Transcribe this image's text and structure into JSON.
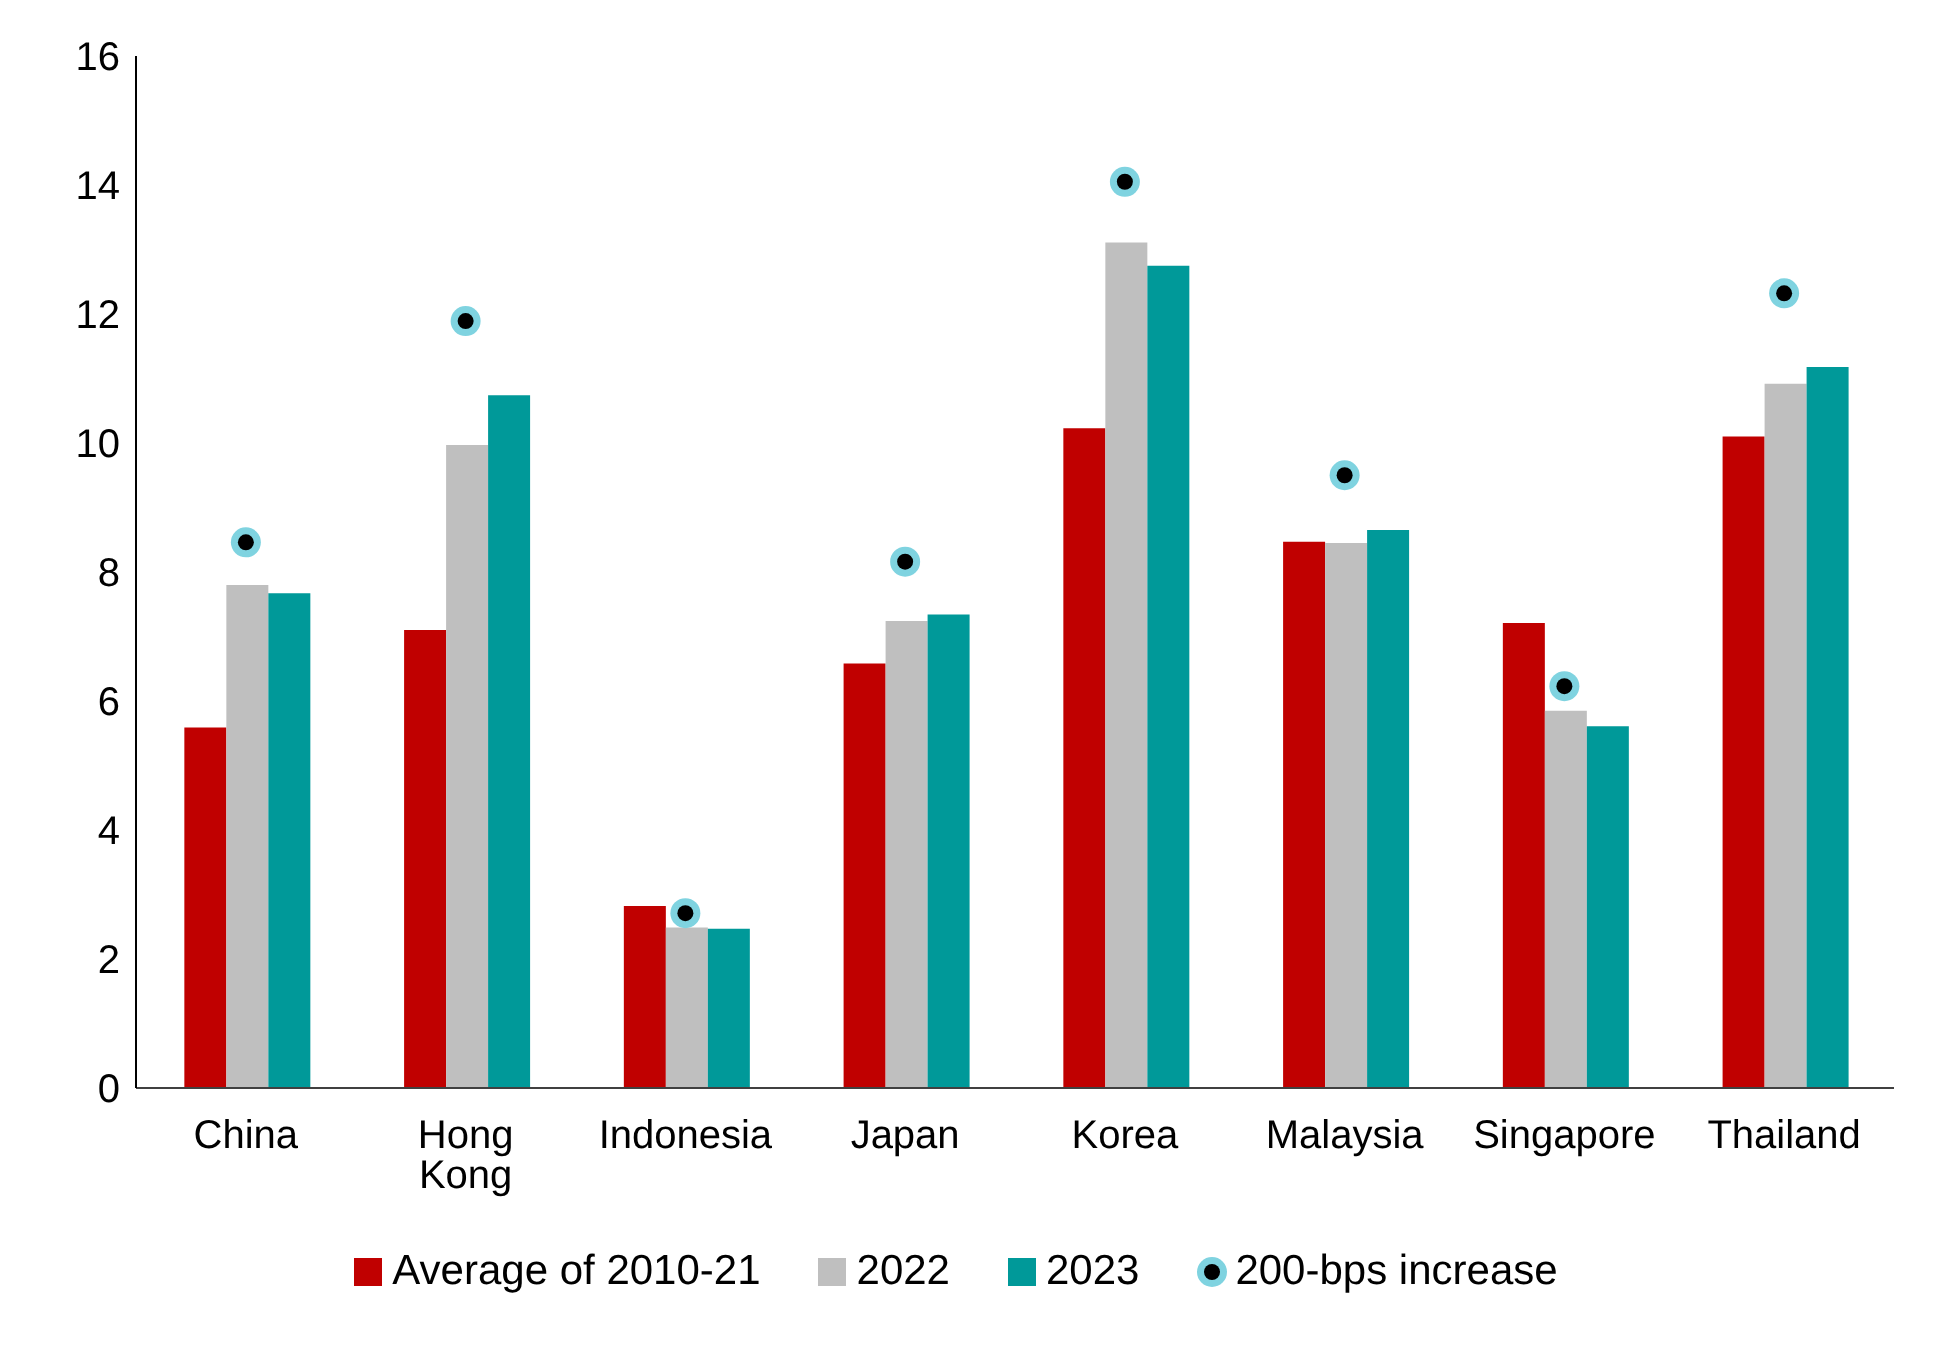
{
  "chart_data": {
    "type": "bar",
    "categories": [
      "China",
      "Hong Kong",
      "Indonesia",
      "Japan",
      "Korea",
      "Malaysia",
      "Singapore",
      "Thailand"
    ],
    "series": [
      {
        "name": "Average of 2010-21",
        "color": "#c00000",
        "values": [
          5.59,
          7.1,
          2.82,
          6.58,
          10.23,
          8.47,
          7.21,
          10.1
        ]
      },
      {
        "name": "2022",
        "color": "#bfbfbf",
        "values": [
          7.8,
          9.97,
          2.49,
          7.24,
          13.11,
          8.45,
          5.85,
          10.92
        ]
      },
      {
        "name": "2023",
        "color": "#009999",
        "values": [
          7.67,
          10.74,
          2.47,
          7.34,
          12.75,
          8.65,
          5.61,
          11.18
        ]
      },
      {
        "name": "200-bps increase",
        "type": "scatter",
        "color": "#7fd3e0",
        "x": [
          "China",
          "Hong Kong",
          "Indonesia",
          "Japan",
          "Korea",
          "Malaysia",
          "Singapore",
          "Thailand"
        ],
        "values": [
          8.46,
          11.89,
          2.71,
          8.16,
          14.05,
          9.5,
          6.23,
          12.32
        ]
      }
    ],
    "ylim": [
      0,
      16
    ],
    "yticks": [
      0,
      2,
      4,
      6,
      8,
      10,
      12,
      14,
      16
    ],
    "legend": "bottom",
    "marker": "circle"
  }
}
